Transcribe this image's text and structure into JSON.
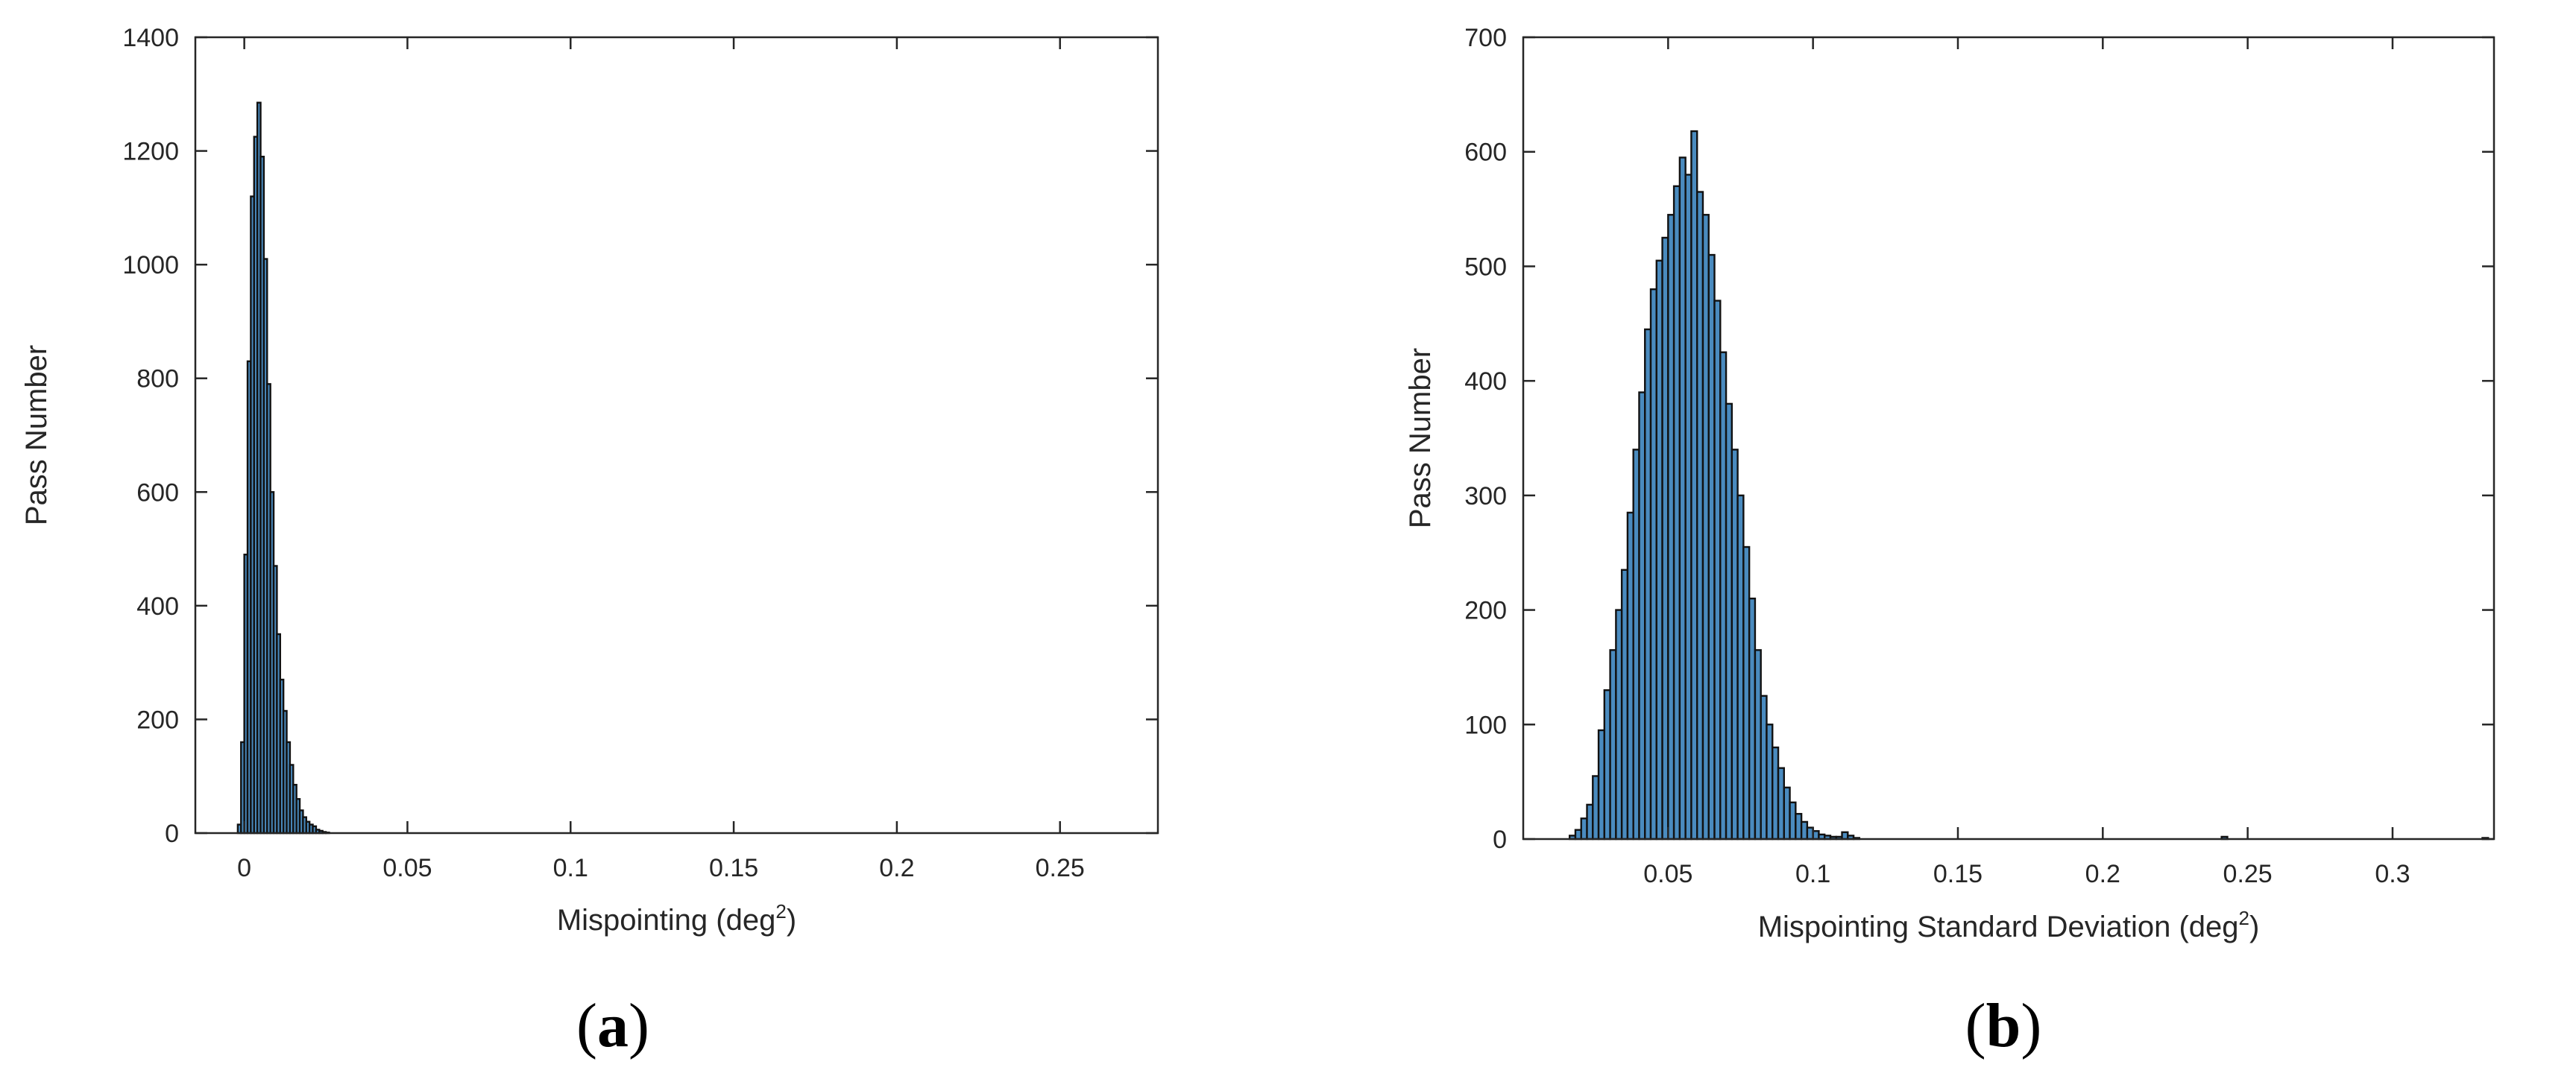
{
  "chart_data": [
    {
      "type": "bar",
      "panel_label": "a",
      "xlabel": "Mispointing (deg",
      "xlabel_superscript": "2",
      "xlabel_suffix": ")",
      "ylabel": "Pass Number",
      "xlim": [
        -0.015,
        0.28
      ],
      "ylim": [
        0,
        1400
      ],
      "xticks": [
        0,
        0.05,
        0.1,
        0.15,
        0.2,
        0.25
      ],
      "xtick_labels": [
        "0",
        "0.05",
        "0.1",
        "0.15",
        "0.2",
        "0.25"
      ],
      "yticks": [
        0,
        200,
        400,
        600,
        800,
        1000,
        1200,
        1400
      ],
      "ytick_labels": [
        "0",
        "200",
        "400",
        "600",
        "800",
        "1000",
        "1200",
        "1400"
      ],
      "grid": false,
      "bar_color": "#4a8bbf",
      "edge_color": "#111111",
      "bin_width": 0.001,
      "bin_start": -0.002,
      "values": [
        15,
        160,
        490,
        830,
        1120,
        1225,
        1285,
        1190,
        1010,
        790,
        600,
        470,
        350,
        270,
        215,
        160,
        120,
        85,
        60,
        40,
        28,
        20,
        15,
        12,
        6,
        4,
        2,
        1
      ]
    },
    {
      "type": "bar",
      "panel_label": "b",
      "xlabel": "Mispointing Standard Deviation (deg",
      "xlabel_superscript": "2",
      "xlabel_suffix": ")",
      "ylabel": "Pass Number",
      "xlim": [
        0,
        0.335
      ],
      "ylim": [
        0,
        700
      ],
      "xticks": [
        0.05,
        0.1,
        0.15,
        0.2,
        0.25,
        0.3
      ],
      "xtick_labels": [
        "0.05",
        "0.1",
        "0.15",
        "0.2",
        "0.25",
        "0.3"
      ],
      "yticks": [
        0,
        100,
        200,
        300,
        400,
        500,
        600,
        700
      ],
      "ytick_labels": [
        "0",
        "100",
        "200",
        "300",
        "400",
        "500",
        "600",
        "700"
      ],
      "grid": false,
      "bar_color": "#4a8bbf",
      "edge_color": "#111111",
      "bin_width": 0.002,
      "bin_start": 0.016,
      "values": [
        3,
        8,
        18,
        30,
        55,
        95,
        130,
        165,
        200,
        235,
        285,
        340,
        390,
        445,
        480,
        505,
        525,
        545,
        570,
        595,
        580,
        618,
        565,
        545,
        510,
        470,
        425,
        380,
        340,
        300,
        255,
        210,
        165,
        125,
        100,
        80,
        62,
        45,
        32,
        22,
        15,
        10,
        7,
        4,
        3,
        2,
        2,
        6,
        3,
        1
      ],
      "outliers": [
        {
          "x": 0.241,
          "value": 2
        },
        {
          "x": 0.331,
          "value": 1
        }
      ]
    }
  ]
}
